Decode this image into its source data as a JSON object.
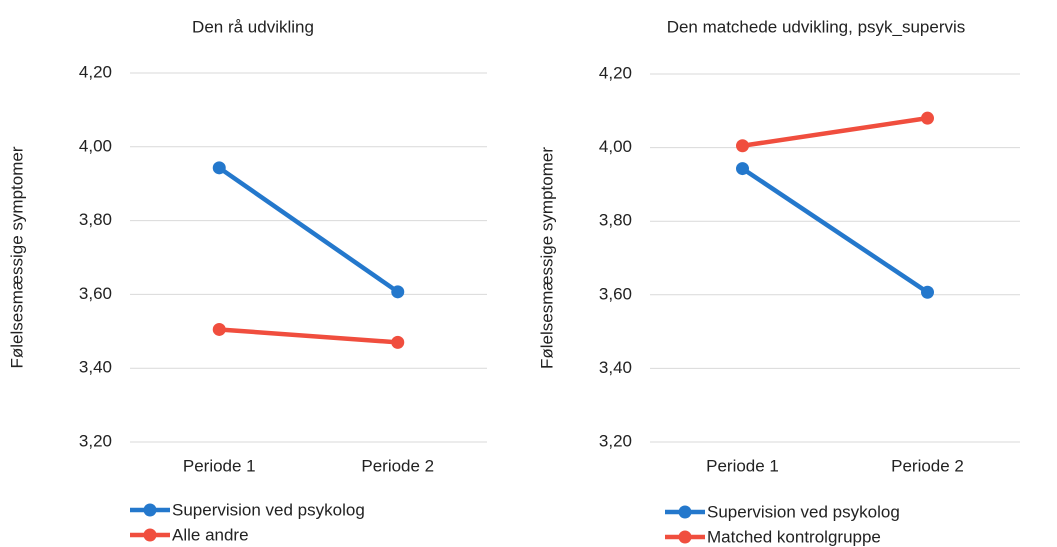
{
  "chart_data": [
    {
      "type": "line",
      "title": "Den rå udvikling",
      "y_label": "Følelsesmæssige symptomer",
      "categories": [
        "Periode 1",
        "Periode 2"
      ],
      "series": [
        {
          "name": "Supervision ved psykolog",
          "color": "#2478cc",
          "values": [
            3.943,
            3.607
          ]
        },
        {
          "name": "Alle andre",
          "color": "#f04e3e",
          "values": [
            3.505,
            3.47
          ]
        }
      ],
      "ylim": [
        3.2,
        4.2
      ],
      "yticks": [
        {
          "value": 3.2,
          "label": "3,20"
        },
        {
          "value": 3.4,
          "label": "3,40"
        },
        {
          "value": 3.6,
          "label": "3,60"
        },
        {
          "value": 3.8,
          "label": "3,80"
        },
        {
          "value": 4.0,
          "label": "4,00"
        },
        {
          "value": 4.2,
          "label": "4,20"
        }
      ],
      "grid": true,
      "legend": "bottom"
    },
    {
      "type": "line",
      "title": "Den matchede udvikling, psyk_supervis",
      "y_label": "Følelsesmæssige symptomer",
      "categories": [
        "Periode 1",
        "Periode 2"
      ],
      "series": [
        {
          "name": "Supervision ved psykolog",
          "color": "#2478cc",
          "values": [
            3.943,
            3.607
          ]
        },
        {
          "name": "Matched kontrolgruppe",
          "color": "#f04e3e",
          "values": [
            4.005,
            4.08
          ]
        }
      ],
      "ylim": [
        3.2,
        4.2
      ],
      "yticks": [
        {
          "value": 3.2,
          "label": "3,20"
        },
        {
          "value": 3.4,
          "label": "3,40"
        },
        {
          "value": 3.6,
          "label": "3,60"
        },
        {
          "value": 3.8,
          "label": "3,80"
        },
        {
          "value": 4.0,
          "label": "4,00"
        },
        {
          "value": 4.2,
          "label": "4,20"
        }
      ],
      "grid": true,
      "legend": "bottom"
    }
  ]
}
